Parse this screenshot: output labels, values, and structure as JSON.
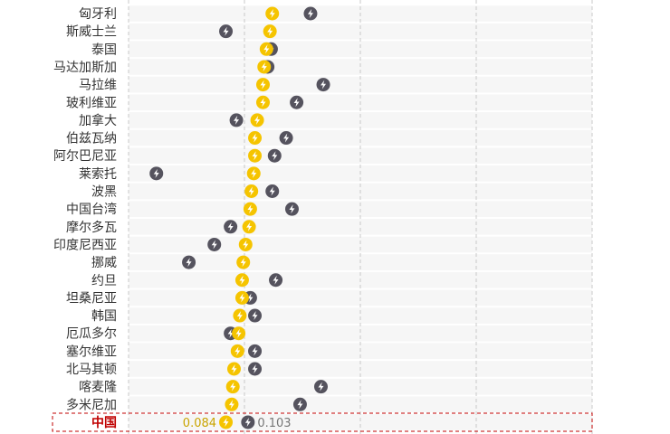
{
  "chart_data": {
    "type": "scatter",
    "orientation": "horizontal dot plot",
    "title": "",
    "xlabel": "",
    "ylabel": "",
    "xlim": [
      0,
      0.4
    ],
    "gridlines_x": [
      0,
      0.1,
      0.2,
      0.3,
      0.4
    ],
    "grid": true,
    "icon": "lightning-bolt-icon",
    "colors": {
      "series_a": "#f5c400",
      "series_b": "#55535e",
      "highlight": "#c00000",
      "row_bg": "#f6f6f6",
      "grid": "#c8c8c8"
    },
    "categories": [
      "匈牙利",
      "斯威士兰",
      "泰国",
      "马达加斯加",
      "马拉维",
      "玻利维亚",
      "加拿大",
      "伯兹瓦纳",
      "阿尔巴尼亚",
      "莱索托",
      "波黑",
      "中国台湾",
      "摩尔多瓦",
      "印度尼西亚",
      "挪威",
      "约旦",
      "坦桑尼亚",
      "韩国",
      "厄瓜多尔",
      "塞尔维亚",
      "北马其顿",
      "喀麦隆",
      "多米尼加",
      "中国"
    ],
    "series": [
      {
        "values": [
          0.124,
          0.122,
          0.119,
          0.117,
          0.116,
          0.116,
          0.111,
          0.109,
          0.109,
          0.108,
          0.106,
          0.105,
          0.104,
          0.101,
          0.099,
          0.098,
          0.098,
          0.096,
          0.095,
          0.094,
          0.091,
          0.09,
          0.089,
          0.084
        ]
      },
      {
        "values": [
          0.157,
          0.084,
          0.123,
          0.12,
          0.168,
          0.145,
          0.093,
          0.136,
          0.126,
          0.024,
          0.124,
          0.141,
          0.088,
          0.074,
          0.052,
          0.127,
          0.105,
          0.109,
          0.088,
          0.109,
          0.109,
          0.166,
          0.148,
          0.103
        ]
      }
    ],
    "highlight": {
      "category": "中国",
      "label_a": "0.084",
      "label_b": "0.103"
    }
  }
}
